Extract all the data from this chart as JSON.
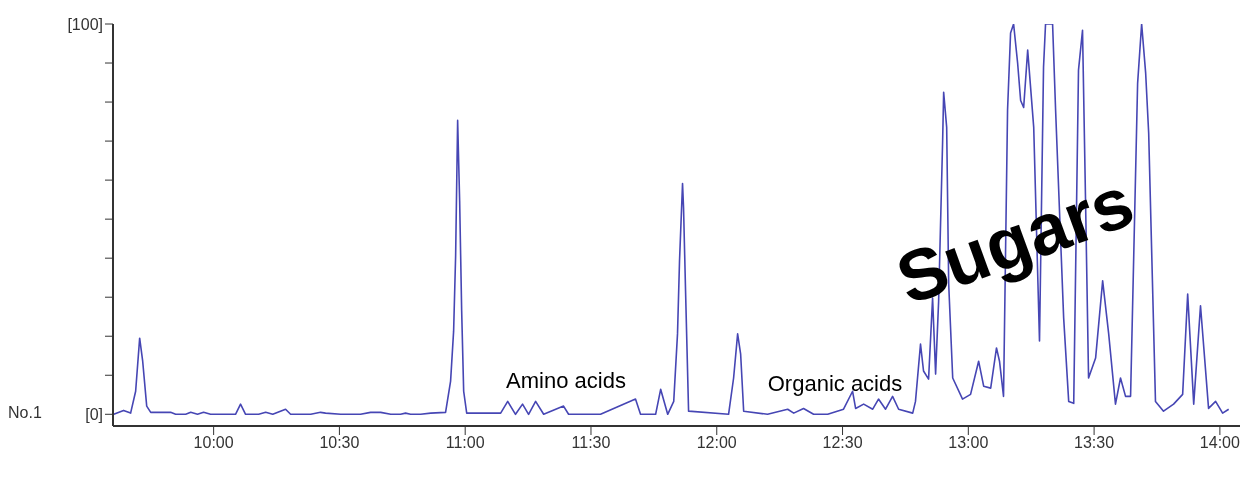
{
  "chart_data": {
    "type": "line",
    "ylabel": "No.1",
    "xlim": [
      9.6,
      14.08
    ],
    "xticks": [
      {
        "value": 10,
        "label": "10:00"
      },
      {
        "value": 10.5,
        "label": "10:30"
      },
      {
        "value": 11,
        "label": "11:00"
      },
      {
        "value": 11.5,
        "label": "11:30"
      },
      {
        "value": 12,
        "label": "12:00"
      },
      {
        "value": 12.5,
        "label": "12:30"
      },
      {
        "value": 13,
        "label": "13:00"
      },
      {
        "value": 13.5,
        "label": "13:30"
      },
      {
        "value": 14,
        "label": "14:00"
      }
    ],
    "ylim": [
      -3,
      100
    ],
    "yticks": [
      {
        "value": 0,
        "label": "[0]"
      },
      {
        "value": 10,
        "label": null
      },
      {
        "value": 20,
        "label": null
      },
      {
        "value": 30,
        "label": null
      },
      {
        "value": 40,
        "label": null
      },
      {
        "value": 50,
        "label": null
      },
      {
        "value": 60,
        "label": null
      },
      {
        "value": 70,
        "label": null
      },
      {
        "value": 80,
        "label": null
      },
      {
        "value": 90,
        "label": null
      },
      {
        "value": 100,
        "label": "[100]"
      }
    ],
    "annotations": [
      "Amino acids",
      "Organic acids",
      "Sugars"
    ],
    "series": [
      {
        "color": "#4646b4",
        "x": [
          9.603,
          9.642,
          9.67,
          9.69,
          9.706,
          9.718,
          9.734,
          9.75,
          9.829,
          9.849,
          9.889,
          9.909,
          9.936,
          9.96,
          9.988,
          10.087,
          10.107,
          10.127,
          10.179,
          10.207,
          10.235,
          10.286,
          10.306,
          10.386,
          10.425,
          10.445,
          10.505,
          10.584,
          10.624,
          10.664,
          10.704,
          10.743,
          10.763,
          10.783,
          10.823,
          10.863,
          10.922,
          10.942,
          10.954,
          10.962,
          10.97,
          10.978,
          10.986,
          10.994,
          11.006,
          11.141,
          11.169,
          11.2,
          11.228,
          11.252,
          11.28,
          11.312,
          11.391,
          11.411,
          11.538,
          11.677,
          11.697,
          11.757,
          11.777,
          11.805,
          11.829,
          11.844,
          11.852,
          11.864,
          11.868,
          11.876,
          11.888,
          12.047,
          12.067,
          12.083,
          12.095,
          12.107,
          12.202,
          12.282,
          12.306,
          12.345,
          12.385,
          12.441,
          12.504,
          12.54,
          12.552,
          12.584,
          12.62,
          12.643,
          12.671,
          12.699,
          12.723,
          12.779,
          12.79,
          12.81,
          12.822,
          12.842,
          12.858,
          12.87,
          12.882,
          12.898,
          12.902,
          12.914,
          12.922,
          12.938,
          12.977,
          13.009,
          13.041,
          13.061,
          13.089,
          13.112,
          13.124,
          13.14,
          13.156,
          13.168,
          13.18,
          13.196,
          13.208,
          13.22,
          13.236,
          13.26,
          13.283,
          13.299,
          13.307,
          13.335,
          13.347,
          13.379,
          13.399,
          13.419,
          13.438,
          13.454,
          13.466,
          13.478,
          13.506,
          13.534,
          13.558,
          13.585,
          13.605,
          13.625,
          13.645,
          13.673,
          13.689,
          13.705,
          13.717,
          13.744,
          13.776,
          13.816,
          13.852,
          13.872,
          13.896,
          13.923,
          13.955,
          13.983,
          14.011,
          14.035
        ],
        "values": [
          0,
          1,
          0.3,
          5.9,
          19.5,
          13.6,
          2.1,
          0.5,
          0.5,
          0,
          0,
          0.5,
          0,
          0.5,
          0,
          0,
          2.6,
          0,
          0,
          0.5,
          0,
          1.3,
          0,
          0,
          0.5,
          0.3,
          0,
          0,
          0.5,
          0.5,
          0,
          0,
          0.3,
          0,
          0,
          0.3,
          0.5,
          8.5,
          21.3,
          40.6,
          75.3,
          54.7,
          26.5,
          5.9,
          0.3,
          0.3,
          3.3,
          0,
          2.6,
          0,
          3.3,
          0,
          2.1,
          0,
          0,
          3.9,
          0,
          0,
          6.4,
          0,
          3.3,
          20.6,
          39.3,
          59.1,
          52.9,
          31.6,
          0.8,
          0,
          9.3,
          20.6,
          15.4,
          0.8,
          0,
          1.3,
          0.3,
          1.5,
          0,
          0,
          1.3,
          5.9,
          1.5,
          2.6,
          1.3,
          3.9,
          1.3,
          4.6,
          1.3,
          0.3,
          3.3,
          18,
          11.1,
          9,
          29.8,
          10.3,
          29,
          70.2,
          82.5,
          73.5,
          33.4,
          9.3,
          3.9,
          5.1,
          13.6,
          7.2,
          6.7,
          17,
          13.6,
          4.6,
          77.9,
          97.7,
          100,
          90,
          80.4,
          78.6,
          93.3,
          73.5,
          18.8,
          88.9,
          100,
          100,
          77.9,
          24.7,
          3.3,
          2.8,
          88.2,
          98.4,
          54.7,
          9.3,
          14.4,
          34.2,
          20.6,
          2.6,
          9.3,
          4.6,
          4.6,
          84.8,
          100,
          87.4,
          72,
          3.3,
          0.8,
          2.6,
          5.1,
          30.8,
          2.6,
          27.8,
          1.5,
          3.3,
          0.3,
          1.3
        ]
      }
    ]
  }
}
